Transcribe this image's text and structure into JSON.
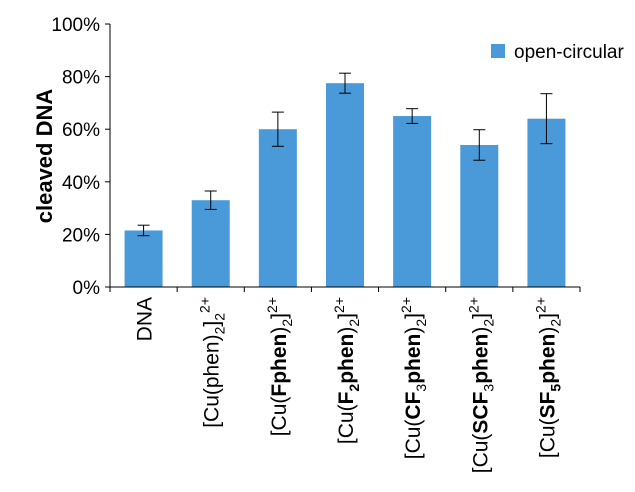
{
  "chart_data": {
    "type": "bar",
    "title": "",
    "xlabel": "",
    "ylabel": "cleaved DNA",
    "ylim": [
      0,
      100
    ],
    "y_ticks": [
      "0%",
      "20%",
      "40%",
      "60%",
      "80%",
      "100%"
    ],
    "y_tick_values": [
      0,
      20,
      40,
      60,
      80,
      100
    ],
    "grid": false,
    "legend_position": "top-right",
    "categories": [
      {
        "id": "c0",
        "label": "DNA",
        "parts": [
          {
            "t": "DNA"
          }
        ]
      },
      {
        "id": "c1",
        "label": "[Cu(phen)2]2+",
        "parts": [
          {
            "t": "[Cu(phen)"
          },
          {
            "t": "2",
            "sub": true
          },
          {
            "t": "]"
          },
          {
            "t": "2",
            "sub": true
          },
          {
            "t": "2+",
            "sup": true
          }
        ]
      },
      {
        "id": "c2",
        "label": "[Cu(Fphen)2]2+",
        "parts": [
          {
            "t": "[Cu("
          },
          {
            "t": "F",
            "bold": true
          },
          {
            "t": "phen",
            "bold": true
          },
          {
            "t": ")"
          },
          {
            "t": "2",
            "sub": true
          },
          {
            "t": "]"
          },
          {
            "t": "2+",
            "sup": true
          }
        ]
      },
      {
        "id": "c3",
        "label": "[Cu(F2phen)2]2+",
        "parts": [
          {
            "t": "[Cu("
          },
          {
            "t": "F",
            "bold": true
          },
          {
            "t": "2",
            "sub": true,
            "bold": true
          },
          {
            "t": "phen",
            "bold": true
          },
          {
            "t": ")"
          },
          {
            "t": "2",
            "sub": true
          },
          {
            "t": "]"
          },
          {
            "t": "2+",
            "sup": true
          }
        ]
      },
      {
        "id": "c4",
        "label": "[Cu(CF3phen)2]2+",
        "parts": [
          {
            "t": "[Cu("
          },
          {
            "t": "CF",
            "bold": true
          },
          {
            "t": "3",
            "sub": true
          },
          {
            "t": "phen",
            "bold": true
          },
          {
            "t": ")"
          },
          {
            "t": "2",
            "sub": true
          },
          {
            "t": "]"
          },
          {
            "t": "2+",
            "sup": true
          }
        ]
      },
      {
        "id": "c5",
        "label": "[Cu(SCF3phen)2]2+",
        "parts": [
          {
            "t": "[Cu("
          },
          {
            "t": "SCF",
            "bold": true
          },
          {
            "t": "3",
            "sub": true
          },
          {
            "t": "phen",
            "bold": true
          },
          {
            "t": ")"
          },
          {
            "t": "2",
            "sub": true
          },
          {
            "t": "]"
          },
          {
            "t": "2+",
            "sup": true
          }
        ]
      },
      {
        "id": "c6",
        "label": "[Cu(SF5phen)2]2+",
        "parts": [
          {
            "t": "[Cu("
          },
          {
            "t": "SF",
            "bold": true
          },
          {
            "t": "5",
            "sub": true,
            "bold": true
          },
          {
            "t": "phen",
            "bold": true
          },
          {
            "t": ")"
          },
          {
            "t": "2",
            "sub": true
          },
          {
            "t": "]"
          },
          {
            "t": "2+",
            "sup": true
          }
        ]
      }
    ],
    "series": [
      {
        "name": "open-circular",
        "color": "#4a9ad9",
        "values": [
          21.5,
          33,
          60,
          77.5,
          65,
          54,
          64
        ],
        "error": [
          2,
          3.5,
          6.5,
          3.8,
          2.8,
          5.8,
          9.5
        ]
      }
    ]
  }
}
